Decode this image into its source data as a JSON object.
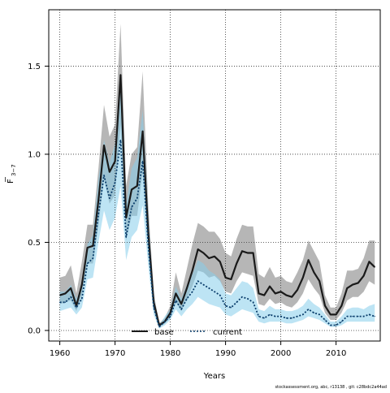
{
  "colors": {
    "base_line": "#1a1a1a",
    "base_band": "#9e9e9e",
    "current_line": "#0a3d6b",
    "current_band": "#87ceeb",
    "grid": "#333333"
  },
  "footer": "stockassessment.org, abc, r13138 , git: c28bdc2a44ad",
  "chart_data": {
    "type": "line",
    "title": "",
    "xlabel": "Years",
    "ylabel": "F̄3−7",
    "ylabel_main": "F",
    "ylabel_sub": "3−7",
    "xlim": [
      1958,
      2018
    ],
    "ylim": [
      -0.06,
      1.82
    ],
    "xticks": [
      1960,
      1970,
      1980,
      1990,
      2000,
      2010
    ],
    "yticks": [
      0.0,
      0.5,
      1.0,
      1.5
    ],
    "ytick_labels": [
      "0.0",
      "0.5",
      "1.0",
      "1.5"
    ],
    "grid": true,
    "legend_position": "bottom-center",
    "x": [
      1960,
      1961,
      1962,
      1963,
      1964,
      1965,
      1966,
      1967,
      1968,
      1969,
      1970,
      1971,
      1972,
      1973,
      1974,
      1975,
      1976,
      1977,
      1978,
      1979,
      1980,
      1981,
      1982,
      1983,
      1984,
      1985,
      1986,
      1987,
      1988,
      1989,
      1990,
      1991,
      1992,
      1993,
      1994,
      1995,
      1996,
      1997,
      1998,
      1999,
      2000,
      2001,
      2002,
      2003,
      2004,
      2005,
      2006,
      2007,
      2008,
      2009,
      2010,
      2011,
      2012,
      2013,
      2014,
      2015,
      2016,
      2017
    ],
    "series": [
      {
        "name": "base",
        "style": "solid",
        "values": [
          0.2,
          0.21,
          0.24,
          0.14,
          0.26,
          0.47,
          0.48,
          0.74,
          1.05,
          0.9,
          0.96,
          1.45,
          0.64,
          0.8,
          0.82,
          1.13,
          0.56,
          0.16,
          0.03,
          0.05,
          0.1,
          0.21,
          0.15,
          0.24,
          0.34,
          0.46,
          0.44,
          0.41,
          0.42,
          0.39,
          0.3,
          0.29,
          0.38,
          0.45,
          0.44,
          0.44,
          0.21,
          0.2,
          0.25,
          0.21,
          0.22,
          0.2,
          0.19,
          0.23,
          0.3,
          0.4,
          0.33,
          0.28,
          0.14,
          0.09,
          0.09,
          0.14,
          0.24,
          0.26,
          0.27,
          0.31,
          0.39,
          0.36
        ],
        "lower": [
          0.15,
          0.16,
          0.17,
          0.11,
          0.2,
          0.38,
          0.38,
          0.6,
          0.86,
          0.72,
          0.77,
          1.17,
          0.51,
          0.65,
          0.65,
          0.9,
          0.44,
          0.12,
          0.02,
          0.04,
          0.07,
          0.16,
          0.11,
          0.18,
          0.25,
          0.34,
          0.33,
          0.3,
          0.31,
          0.28,
          0.22,
          0.21,
          0.28,
          0.33,
          0.32,
          0.31,
          0.15,
          0.14,
          0.18,
          0.15,
          0.16,
          0.14,
          0.13,
          0.16,
          0.21,
          0.29,
          0.24,
          0.2,
          0.1,
          0.06,
          0.06,
          0.1,
          0.17,
          0.19,
          0.19,
          0.22,
          0.28,
          0.26
        ],
        "upper": [
          0.3,
          0.31,
          0.37,
          0.21,
          0.39,
          0.6,
          0.6,
          0.92,
          1.28,
          1.1,
          1.17,
          1.74,
          0.82,
          1.0,
          1.04,
          1.47,
          0.72,
          0.21,
          0.04,
          0.07,
          0.14,
          0.33,
          0.21,
          0.35,
          0.49,
          0.61,
          0.59,
          0.56,
          0.56,
          0.52,
          0.44,
          0.42,
          0.52,
          0.6,
          0.59,
          0.59,
          0.32,
          0.3,
          0.36,
          0.3,
          0.31,
          0.28,
          0.27,
          0.33,
          0.4,
          0.51,
          0.45,
          0.39,
          0.2,
          0.13,
          0.13,
          0.21,
          0.34,
          0.34,
          0.35,
          0.41,
          0.51,
          0.51
        ]
      },
      {
        "name": "current",
        "style": "dotted",
        "values": [
          0.16,
          0.16,
          0.19,
          0.13,
          0.18,
          0.38,
          0.41,
          0.66,
          0.88,
          0.75,
          0.84,
          1.08,
          0.53,
          0.7,
          0.75,
          0.96,
          0.49,
          0.13,
          0.02,
          0.05,
          0.08,
          0.17,
          0.12,
          0.18,
          0.22,
          0.28,
          0.26,
          0.24,
          0.22,
          0.2,
          0.14,
          0.13,
          0.16,
          0.19,
          0.18,
          0.16,
          0.08,
          0.07,
          0.09,
          0.08,
          0.08,
          0.07,
          0.07,
          0.08,
          0.09,
          0.12,
          0.1,
          0.09,
          0.06,
          0.03,
          0.03,
          0.05,
          0.08,
          0.08,
          0.08,
          0.08,
          0.09,
          0.08
        ],
        "lower": [
          0.11,
          0.12,
          0.13,
          0.09,
          0.13,
          0.29,
          0.3,
          0.5,
          0.68,
          0.57,
          0.64,
          0.82,
          0.4,
          0.53,
          0.57,
          0.71,
          0.37,
          0.09,
          0.01,
          0.03,
          0.06,
          0.12,
          0.08,
          0.12,
          0.15,
          0.19,
          0.17,
          0.15,
          0.14,
          0.13,
          0.09,
          0.08,
          0.1,
          0.12,
          0.11,
          0.1,
          0.05,
          0.04,
          0.05,
          0.05,
          0.05,
          0.04,
          0.04,
          0.05,
          0.06,
          0.08,
          0.07,
          0.06,
          0.04,
          0.02,
          0.02,
          0.03,
          0.05,
          0.05,
          0.05,
          0.05,
          0.05,
          0.05
        ],
        "upper": [
          0.22,
          0.22,
          0.26,
          0.18,
          0.25,
          0.49,
          0.54,
          0.86,
          1.08,
          0.95,
          1.06,
          1.38,
          0.71,
          0.92,
          0.98,
          1.25,
          0.66,
          0.19,
          0.03,
          0.08,
          0.12,
          0.25,
          0.18,
          0.26,
          0.32,
          0.4,
          0.38,
          0.34,
          0.32,
          0.29,
          0.21,
          0.2,
          0.24,
          0.28,
          0.27,
          0.24,
          0.12,
          0.11,
          0.14,
          0.12,
          0.12,
          0.11,
          0.11,
          0.12,
          0.14,
          0.18,
          0.15,
          0.13,
          0.09,
          0.05,
          0.05,
          0.08,
          0.12,
          0.13,
          0.13,
          0.12,
          0.14,
          0.15
        ]
      }
    ]
  }
}
